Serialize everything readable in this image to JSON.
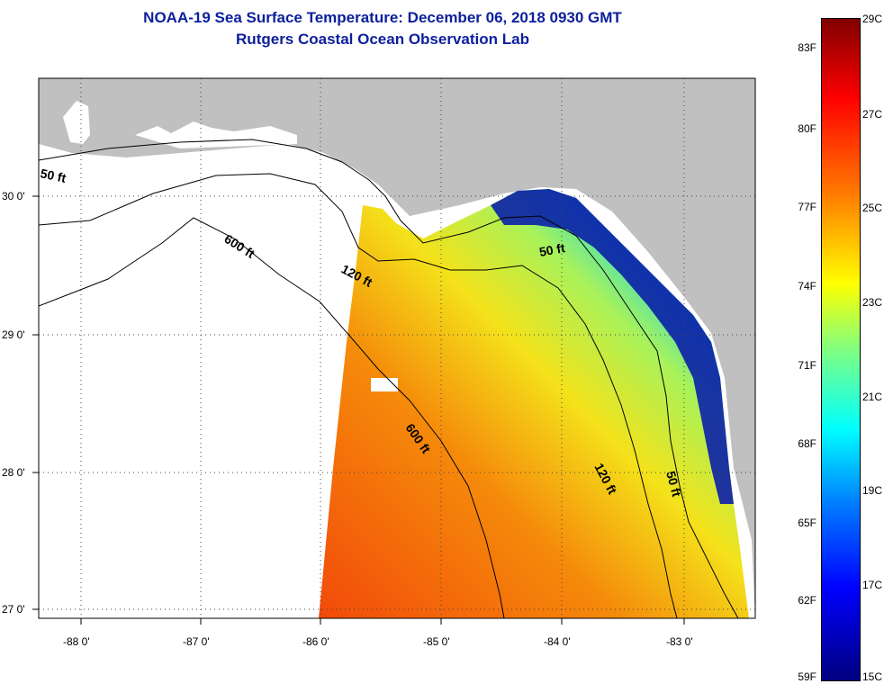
{
  "title": {
    "line1": "NOAA-19 Sea Surface Temperature:  December 06, 2018 0930 GMT",
    "line2": "Rutgers Coastal Ocean Observation Lab"
  },
  "axes": {
    "lat_labels": [
      "30 0'",
      "29 0'",
      "28 0'",
      "27 0'"
    ],
    "lon_labels": [
      "-88 0'",
      "-87 0'",
      "-86 0'",
      "-85 0'",
      "-84 0'",
      "-83 0'"
    ]
  },
  "contours": {
    "c50_west": "50 ft",
    "c600_west": "600 ft",
    "c120_west": "120 ft",
    "c50_east": "50 ft",
    "c600_mid": "600 ft",
    "c120_south": "120 ft",
    "c50_south": "50 ft"
  },
  "colorbar": {
    "f_labels": [
      "83F",
      "80F",
      "77F",
      "74F",
      "71F",
      "68F",
      "65F",
      "62F",
      "59F"
    ],
    "c_labels": [
      "29C",
      "27C",
      "25C",
      "23C",
      "21C",
      "19C",
      "17C",
      "15C"
    ]
  },
  "colors": {
    "title": "#0c1f9c",
    "land": "#c0c0c0",
    "no_data": "#ffffff"
  }
}
